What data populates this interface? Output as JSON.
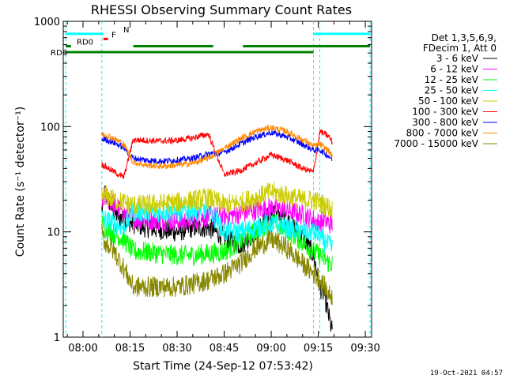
{
  "chart_data": {
    "type": "line",
    "title": "RHESSI Observing Summary Count Rates",
    "xlabel": "Start Time (24-Sep-12 07:53:42)",
    "ylabel": "Count Rate (s⁻¹ detector⁻¹)",
    "yscale": "log",
    "ylim": [
      1,
      1000
    ],
    "xlim_minutes": [
      473.7,
      572.0
    ],
    "x_ticks": [
      {
        "label": "08:00",
        "min": 480
      },
      {
        "label": "08:15",
        "min": 495
      },
      {
        "label": "08:30",
        "min": 510
      },
      {
        "label": "08:45",
        "min": 525
      },
      {
        "label": "09:00",
        "min": 540
      },
      {
        "label": "09:15",
        "min": 555
      },
      {
        "label": "09:30",
        "min": 570
      }
    ],
    "y_ticks": [
      {
        "label": "1",
        "value": 1
      },
      {
        "label": "10",
        "value": 10
      },
      {
        "label": "100",
        "value": 100
      },
      {
        "label": "1000",
        "value": 1000
      }
    ],
    "legend_header": [
      "Det 1,3,5,6,9,",
      "FDecim 1, Att 0"
    ],
    "legend_position": "right",
    "night_gaps_minutes": [
      [
        474.5,
        486.0
      ],
      [
        553.5,
        555.5
      ]
    ],
    "flags": [
      {
        "name": "N",
        "color": "#00ffff",
        "level": 760,
        "segments": [
          [
            474.5,
            486.5
          ],
          [
            553.5,
            571.5
          ]
        ]
      },
      {
        "name": "F",
        "color": "#ff0000",
        "level": 680,
        "segments": [
          [
            486.5,
            488.0
          ]
        ]
      },
      {
        "name": "RD0",
        "color": "#008000",
        "level": 580,
        "segments": [
          [
            474.5,
            476.2
          ],
          [
            496.0,
            521.5
          ],
          [
            531.0,
            553.5
          ],
          [
            553.5,
            571.5
          ]
        ]
      },
      {
        "name": "RD6",
        "color": "#008000",
        "level": 510,
        "segments": [
          [
            474.5,
            496.0
          ],
          [
            496.0,
            531.0
          ],
          [
            531.0,
            553.5
          ]
        ]
      }
    ],
    "series": [
      {
        "name": "3 - 6 keV",
        "color": "#000000",
        "x": [
          486.0,
          487.0,
          490.0,
          493.0,
          496.0,
          500.0,
          505.0,
          510.0,
          515.0,
          520.0,
          525.0,
          530.0,
          535.0,
          540.0,
          545.0,
          550.0,
          553.5,
          555.5,
          557.0,
          558.5,
          559.5
        ],
        "y": [
          16,
          24,
          15,
          13,
          12,
          11,
          10.5,
          10,
          11,
          11,
          9,
          7.5,
          10,
          15,
          13,
          9,
          6,
          3,
          2.5,
          1.5,
          1.1
        ]
      },
      {
        "name": "6 - 12 keV",
        "color": "#ff00ff",
        "x": [
          486.0,
          487.0,
          490.0,
          493.0,
          496.0,
          500.0,
          505.0,
          510.0,
          515.0,
          520.0,
          525.0,
          530.0,
          535.0,
          540.0,
          545.0,
          550.0,
          553.5,
          555.5,
          557.0,
          558.5,
          559.5
        ],
        "y": [
          18,
          22,
          18,
          15,
          13.5,
          13,
          12.8,
          12.5,
          13,
          14,
          14,
          15,
          16,
          17,
          16,
          14.5,
          13,
          12,
          13,
          12,
          12
        ]
      },
      {
        "name": "12 - 25 keV",
        "color": "#00ff00",
        "x": [
          486.0,
          487.0,
          490.0,
          493.0,
          496.0,
          500.0,
          505.0,
          510.0,
          515.0,
          520.0,
          525.0,
          530.0,
          535.0,
          540.0,
          545.0,
          550.0,
          553.5,
          555.5,
          557.0,
          558.5,
          559.5
        ],
        "y": [
          12,
          11,
          9.5,
          8.5,
          6.5,
          6.5,
          6.2,
          6,
          6,
          6.2,
          6.5,
          8,
          10,
          12.5,
          10.5,
          8,
          6.5,
          6,
          5.5,
          5,
          5
        ]
      },
      {
        "name": "25 - 50 keV",
        "color": "#00ffff",
        "x": [
          486.0,
          487.0,
          490.0,
          493.0,
          496.0,
          500.0,
          505.0,
          510.0,
          515.0,
          520.0,
          525.0,
          530.0,
          535.0,
          540.0,
          545.0,
          550.0,
          553.5,
          555.5,
          557.0,
          558.5,
          559.5
        ],
        "y": [
          14,
          13,
          12,
          11,
          15.5,
          15.5,
          15.5,
          15.5,
          16,
          16.5,
          10,
          10,
          11,
          12,
          11,
          10,
          10,
          9,
          8,
          7.5,
          7
        ]
      },
      {
        "name": "50 - 100 keV",
        "color": "#cccc00",
        "x": [
          486.0,
          487.0,
          490.0,
          493.0,
          496.0,
          500.0,
          505.0,
          510.0,
          515.0,
          520.0,
          525.0,
          530.0,
          535.0,
          540.0,
          545.0,
          550.0,
          553.5,
          555.5,
          557.0,
          558.5,
          559.5
        ],
        "y": [
          22,
          22,
          20,
          19,
          18,
          18,
          18.5,
          19,
          20,
          21,
          18,
          19,
          21,
          24,
          22,
          20,
          20,
          19,
          18,
          17,
          16
        ]
      },
      {
        "name": "100 - 300 keV",
        "color": "#ff0000",
        "x": [
          486.0,
          487.0,
          490.0,
          493.0,
          496.0,
          500.0,
          505.0,
          510.0,
          515.0,
          520.0,
          525.0,
          530.0,
          535.0,
          540.0,
          545.0,
          550.0,
          553.5,
          555.5,
          557.0,
          558.5,
          559.5
        ],
        "y": [
          44,
          42,
          37,
          33,
          75,
          74,
          73,
          74,
          78,
          85,
          35,
          38,
          45,
          54,
          48,
          40,
          37,
          90,
          85,
          80,
          70
        ]
      },
      {
        "name": "300 - 800 keV",
        "color": "#0000ff",
        "x": [
          486.0,
          487.0,
          490.0,
          493.0,
          496.0,
          500.0,
          505.0,
          510.0,
          515.0,
          520.0,
          525.0,
          530.0,
          535.0,
          540.0,
          545.0,
          550.0,
          553.5,
          555.5,
          557.0,
          558.5,
          559.5
        ],
        "y": [
          75,
          76,
          70,
          63,
          50,
          48,
          47,
          48,
          50,
          55,
          57,
          68,
          80,
          88,
          80,
          68,
          60,
          60,
          56,
          52,
          48
        ]
      },
      {
        "name": "800 - 7000 keV",
        "color": "#ff8800",
        "x": [
          486.0,
          487.0,
          490.0,
          493.0,
          496.0,
          500.0,
          505.0,
          510.0,
          515.0,
          520.0,
          525.0,
          530.0,
          535.0,
          540.0,
          545.0,
          550.0,
          553.5,
          555.5,
          557.0,
          558.5,
          559.5
        ],
        "y": [
          85,
          84,
          77,
          68,
          46,
          43,
          42,
          43,
          45,
          50,
          62,
          76,
          90,
          98,
          90,
          75,
          65,
          68,
          63,
          58,
          52
        ]
      },
      {
        "name": "7000 - 15000 keV",
        "color": "#888800",
        "x": [
          486.0,
          487.0,
          490.0,
          493.0,
          496.0,
          500.0,
          505.0,
          510.0,
          515.0,
          520.0,
          525.0,
          530.0,
          535.0,
          540.0,
          545.0,
          550.0,
          553.5,
          555.5,
          557.0,
          558.5,
          559.5
        ],
        "y": [
          9.5,
          8,
          6.5,
          4.5,
          3,
          3,
          3,
          3,
          3.2,
          3.5,
          4,
          5,
          7,
          8.5,
          7,
          5,
          4,
          3.5,
          3,
          2.5,
          2.5
        ]
      }
    ],
    "grid": false,
    "footer_timestamp": "19-Oct-2021 04:57"
  }
}
